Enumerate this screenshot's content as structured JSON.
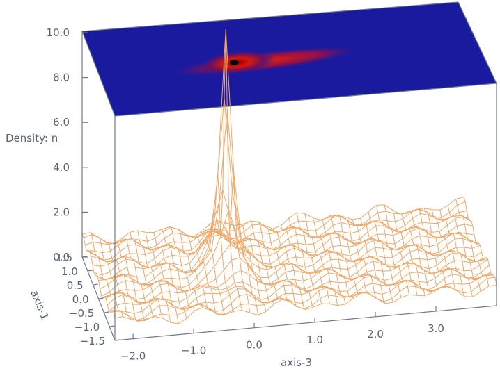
{
  "chart_data": {
    "type": "surface",
    "zlabel": "Density: n",
    "xlabel": "axis-3",
    "ylabel": "axis-1",
    "x_ticks": [
      "−2.0",
      "−1.0",
      "0.0",
      "1.0",
      "2.0",
      "3.0"
    ],
    "y_ticks": [
      "−1.5",
      "−1.0",
      "−0.5",
      "0.0",
      "0.5",
      "1.0",
      "1.5"
    ],
    "z_ticks": [
      "0.0",
      "2.0",
      "4.0",
      "6.0",
      "8.0",
      "10.0"
    ],
    "xlim": [
      -2.3,
      4.0
    ],
    "ylim": [
      -1.5,
      1.5
    ],
    "zlim": [
      0,
      10
    ],
    "peak": {
      "x": -0.2,
      "y": 0.0,
      "z": 9.0
    },
    "background_level": 0.8,
    "contour_projection_on_top": true,
    "colors": {
      "mesh": "#f0a868",
      "projection_bg": "#1a1a9e",
      "axes": "#6f7a8c",
      "text": "#5a6478"
    }
  }
}
